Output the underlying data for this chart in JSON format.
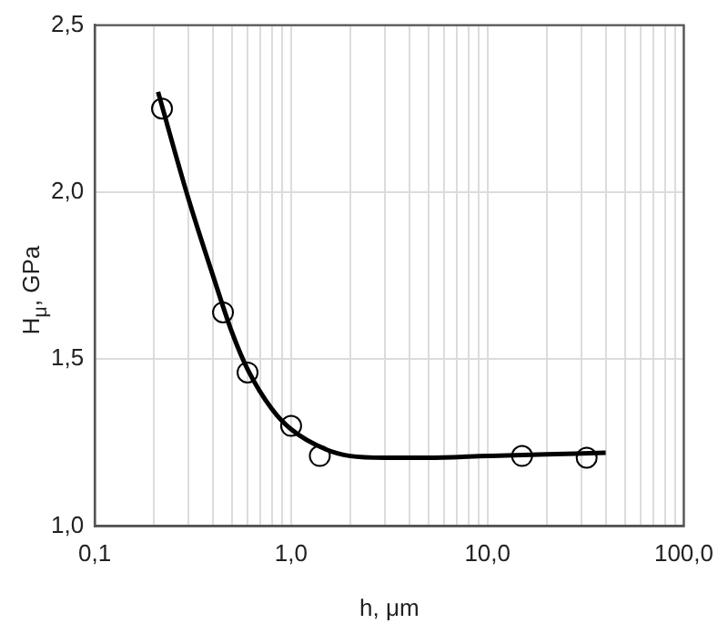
{
  "chart_data": {
    "type": "scatter",
    "xlabel": "h, μm",
    "ylabel": "H$_{μ}$, GPa",
    "log": "x",
    "grid": true,
    "legend": false,
    "xlim": [
      0.1,
      100
    ],
    "ylim": [
      1.0,
      2.5
    ],
    "xticks": [
      {
        "value": 0.1,
        "label": "0,1"
      },
      {
        "value": 0.2,
        "label": null
      },
      {
        "value": 0.3,
        "label": null
      },
      {
        "value": 0.4,
        "label": null
      },
      {
        "value": 0.5,
        "label": null
      },
      {
        "value": 0.6,
        "label": null
      },
      {
        "value": 0.7,
        "label": null
      },
      {
        "value": 0.8,
        "label": null
      },
      {
        "value": 0.9,
        "label": null
      },
      {
        "value": 1,
        "label": "1,0"
      },
      {
        "value": 2,
        "label": null
      },
      {
        "value": 3,
        "label": null
      },
      {
        "value": 4,
        "label": null
      },
      {
        "value": 5,
        "label": null
      },
      {
        "value": 6,
        "label": null
      },
      {
        "value": 7,
        "label": null
      },
      {
        "value": 8,
        "label": null
      },
      {
        "value": 9,
        "label": null
      },
      {
        "value": 10,
        "label": "10,0"
      },
      {
        "value": 20,
        "label": null
      },
      {
        "value": 30,
        "label": null
      },
      {
        "value": 40,
        "label": null
      },
      {
        "value": 50,
        "label": null
      },
      {
        "value": 60,
        "label": null
      },
      {
        "value": 70,
        "label": null
      },
      {
        "value": 80,
        "label": null
      },
      {
        "value": 90,
        "label": null
      },
      {
        "value": 100,
        "label": "100,0"
      }
    ],
    "yticks": [
      {
        "value": 1.0,
        "label": "1,0"
      },
      {
        "value": 1.5,
        "label": "1,5"
      },
      {
        "value": 2.0,
        "label": "2,0"
      },
      {
        "value": 2.5,
        "label": "2,5"
      }
    ],
    "series": [
      {
        "color": "#000000",
        "marker": "circle",
        "x": [
          0.22,
          0.45,
          0.6,
          1.0,
          1.4,
          15,
          32
        ],
        "values": [
          2.25,
          1.64,
          1.46,
          1.3,
          1.21,
          1.21,
          1.205
        ]
      },
      {
        "type": "line",
        "color": "#000000",
        "marker": "none",
        "line_style": "solid",
        "x": [
          0.21,
          0.3,
          0.4,
          0.5,
          0.6,
          0.8,
          1.0,
          1.5,
          2,
          3,
          5,
          10,
          20,
          40
        ],
        "values": [
          2.3,
          1.98,
          1.75,
          1.58,
          1.47,
          1.35,
          1.29,
          1.23,
          1.21,
          1.205,
          1.205,
          1.21,
          1.215,
          1.22
        ]
      }
    ]
  }
}
